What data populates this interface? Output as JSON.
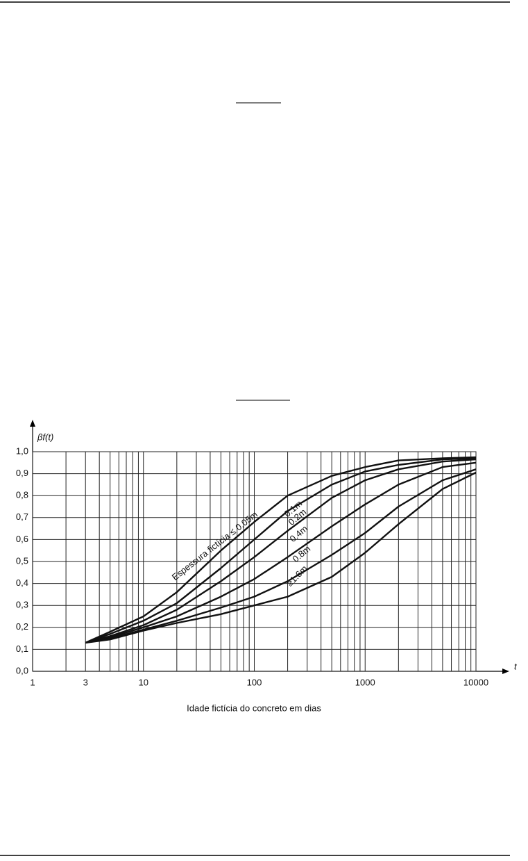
{
  "chart_data": {
    "type": "line",
    "xlabel": "Idade fictícia do concreto em dias",
    "xaxis_symbol": "t",
    "ylabel": "βf(t)",
    "xlog": true,
    "grid": true,
    "color": "#111111",
    "xlim": [
      1,
      10000
    ],
    "ylim": [
      0,
      1.0
    ],
    "xticks": [
      1,
      3,
      10,
      100,
      1000,
      10000
    ],
    "xgrid": [
      2,
      3,
      4,
      5,
      6,
      7,
      8,
      9,
      10,
      20,
      30,
      40,
      50,
      60,
      70,
      80,
      90,
      100,
      200,
      300,
      400,
      500,
      600,
      700,
      800,
      900,
      1000,
      2000,
      3000,
      4000,
      5000,
      6000,
      7000,
      8000,
      9000,
      10000
    ],
    "yticks": [
      {
        "value": 0,
        "label": "0,0"
      },
      {
        "value": 0.1,
        "label": "0,1"
      },
      {
        "value": 0.2,
        "label": "0,2"
      },
      {
        "value": 0.3,
        "label": "0,3"
      },
      {
        "value": 0.4,
        "label": "0,4"
      },
      {
        "value": 0.5,
        "label": "0,5"
      },
      {
        "value": 0.6,
        "label": "0,6"
      },
      {
        "value": 0.7,
        "label": "0,7"
      },
      {
        "value": 0.8,
        "label": "0,8"
      },
      {
        "value": 0.9,
        "label": "0,9"
      },
      {
        "value": 1.0,
        "label": "1,0"
      }
    ],
    "x": [
      3,
      5,
      10,
      20,
      50,
      100,
      200,
      500,
      1000,
      2000,
      5000,
      10000
    ],
    "series": [
      {
        "name": "Espessura fictícia ≤ 0,05m",
        "color": "#111111",
        "values": [
          0.13,
          0.18,
          0.25,
          0.36,
          0.55,
          0.68,
          0.8,
          0.89,
          0.93,
          0.96,
          0.97,
          0.975
        ]
      },
      {
        "name": "0.1m",
        "color": "#111111",
        "values": [
          0.13,
          0.17,
          0.23,
          0.31,
          0.47,
          0.6,
          0.73,
          0.85,
          0.91,
          0.94,
          0.965,
          0.97
        ]
      },
      {
        "name": "0.2m",
        "color": "#111111",
        "values": [
          0.13,
          0.16,
          0.21,
          0.28,
          0.41,
          0.52,
          0.64,
          0.79,
          0.87,
          0.92,
          0.955,
          0.965
        ]
      },
      {
        "name": "0.4m",
        "color": "#111111",
        "values": [
          0.13,
          0.155,
          0.2,
          0.25,
          0.34,
          0.42,
          0.52,
          0.66,
          0.76,
          0.85,
          0.93,
          0.95
        ]
      },
      {
        "name": "0.8m",
        "color": "#111111",
        "values": [
          0.13,
          0.15,
          0.19,
          0.23,
          0.29,
          0.34,
          0.41,
          0.53,
          0.63,
          0.75,
          0.87,
          0.92
        ]
      },
      {
        "name": "≥1.6m",
        "color": "#111111",
        "values": [
          0.13,
          0.145,
          0.185,
          0.22,
          0.26,
          0.3,
          0.34,
          0.43,
          0.54,
          0.67,
          0.83,
          0.905
        ]
      }
    ]
  }
}
